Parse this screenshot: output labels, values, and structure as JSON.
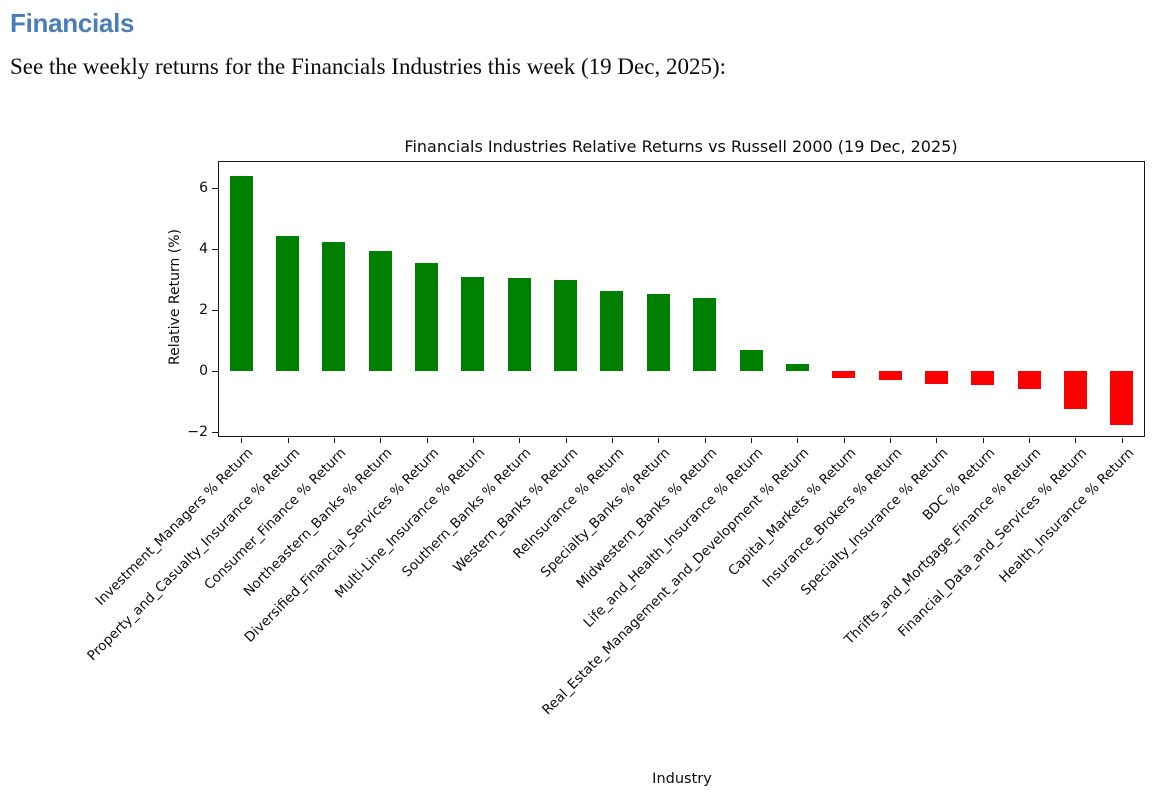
{
  "page": {
    "heading": "Financials",
    "heading_color": "#4a7ebb",
    "subtitle": "See the weekly returns for the Financials Industries this week (19 Dec, 2025):"
  },
  "chart_data": {
    "type": "bar",
    "title": "Financials Industries Relative Returns vs Russell 2000 (19 Dec, 2025)",
    "xlabel": "Industry",
    "ylabel": "Relative Return (%)",
    "ylim": [
      -2.16,
      6.89
    ],
    "yticks": [
      6,
      4,
      2,
      0,
      -2
    ],
    "grid": false,
    "legend": "none",
    "positive_color": "#008000",
    "negative_color": "#ff0000",
    "categories": [
      "Investment_Managers % Return",
      "Property_and_Casualty_Insurance % Return",
      "Consumer_Finance % Return",
      "Northeastern_Banks % Return",
      "Diversified_Financial_Services % Return",
      "Multi-Line_Insurance % Return",
      "Southern_Banks % Return",
      "Western_Banks % Return",
      "ReInsurance % Return",
      "Specialty_Banks % Return",
      "Midwestern_Banks % Return",
      "Life_and_Health_Insurance % Return",
      "Real_Estate_Management_and_Development % Return",
      "Capital_Markets % Return",
      "Insurance_Brokers % Return",
      "Specialty_Insurance % Return",
      "BDC % Return",
      "Thrifts_and_Mortgage_Finance % Return",
      "Financial_Data_and_Services % Return",
      "Health_Insurance % Return"
    ],
    "values": [
      6.4,
      4.43,
      4.22,
      3.95,
      3.55,
      3.1,
      3.04,
      2.98,
      2.63,
      2.53,
      2.4,
      0.68,
      0.24,
      -0.24,
      -0.3,
      -0.42,
      -0.45,
      -0.57,
      -1.25,
      -1.78
    ]
  }
}
